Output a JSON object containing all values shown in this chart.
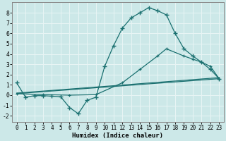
{
  "bg_color": "#cce8e8",
  "grid_color": "#f0f8f8",
  "line_color": "#1a7070",
  "xlabel": "Humidex (Indice chaleur)",
  "xlim": [
    -0.5,
    23.5
  ],
  "ylim": [
    -2.6,
    9.0
  ],
  "yticks": [
    -2,
    -1,
    0,
    1,
    2,
    3,
    4,
    5,
    6,
    7,
    8
  ],
  "xticks": [
    0,
    1,
    2,
    3,
    4,
    5,
    6,
    7,
    8,
    9,
    10,
    11,
    12,
    13,
    14,
    15,
    16,
    17,
    18,
    19,
    20,
    21,
    22,
    23
  ],
  "curve1_x": [
    0,
    1,
    2,
    3,
    4,
    5,
    6,
    7,
    8,
    9,
    10,
    11,
    12,
    13,
    14,
    15,
    16,
    17,
    18,
    19,
    20,
    21,
    22,
    23
  ],
  "curve1_y": [
    1.2,
    -0.2,
    -0.05,
    -0.05,
    -0.1,
    -0.15,
    -1.2,
    -1.8,
    -0.5,
    -0.2,
    2.8,
    4.8,
    6.5,
    7.5,
    8.0,
    8.5,
    8.2,
    7.8,
    6.0,
    4.5,
    3.8,
    3.2,
    2.5,
    1.6
  ],
  "curve2_x": [
    0,
    3,
    6,
    9,
    12,
    14,
    16,
    17,
    19,
    20,
    21,
    22,
    23
  ],
  "curve2_y": [
    0.15,
    0.05,
    0.0,
    0.05,
    1.2,
    2.5,
    3.8,
    4.5,
    3.8,
    3.5,
    3.2,
    2.8,
    1.6
  ],
  "line3_x": [
    0,
    23
  ],
  "line3_y": [
    0.15,
    1.6
  ],
  "line4_x": [
    0,
    23
  ],
  "line4_y": [
    0.2,
    1.7
  ],
  "tick_fontsize": 5.5,
  "xlabel_fontsize": 6.5
}
